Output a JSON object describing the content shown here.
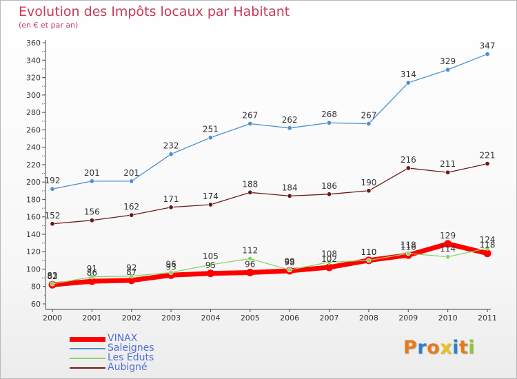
{
  "header": {
    "title": "Evolution des Impôts locaux par Habitant",
    "subtitle": "(en € et par an)"
  },
  "brand": {
    "letters": [
      "P",
      "r",
      "o",
      "x",
      "i",
      "t",
      "i"
    ],
    "colors": [
      "#e87a1e",
      "#2f7fd0",
      "#e87a1e",
      "#e8c21e",
      "#2f7fd0",
      "#e87a1e",
      "#8cc63f"
    ]
  },
  "chart_data": {
    "type": "line",
    "x": [
      "2000",
      "2001",
      "2002",
      "2003",
      "2004",
      "2005",
      "2006",
      "2007",
      "2008",
      "2009",
      "2010",
      "2011"
    ],
    "ylim": [
      60,
      360
    ],
    "yticks": [
      60,
      80,
      100,
      120,
      140,
      160,
      180,
      200,
      220,
      240,
      260,
      280,
      300,
      320,
      340,
      360
    ],
    "grid": false,
    "legend_position": "bottom-left",
    "series": [
      {
        "name": "VINAX",
        "color": "#ff0000",
        "values": [
          82,
          86,
          87,
          93,
          95,
          96,
          98,
          102,
          110,
          116,
          129,
          118
        ],
        "labels": [
          "82",
          "86",
          "87",
          "93",
          "95",
          "96",
          "98",
          "102",
          "110",
          "116",
          "129",
          "118"
        ]
      },
      {
        "name": "Saleignes",
        "color": "#4a90d0",
        "values": [
          192,
          201,
          201,
          232,
          251,
          267,
          262,
          268,
          267,
          314,
          329,
          347
        ],
        "labels": [
          "192",
          "201",
          "201",
          "232",
          "251",
          "267",
          "262",
          "268",
          "267",
          "314",
          "329",
          "347"
        ]
      },
      {
        "name": "Les Éduts",
        "color": "#8cd36a",
        "values": [
          83,
          91,
          92,
          96,
          105,
          112,
          99,
          108,
          110,
          118,
          114,
          124
        ],
        "labels": [
          "83",
          "91",
          "92",
          "96",
          "105",
          "112",
          "99",
          "108",
          "110",
          "118",
          "114",
          "124"
        ]
      },
      {
        "name": "Aubigné",
        "color": "#6b1a1a",
        "values": [
          152,
          156,
          162,
          171,
          174,
          188,
          184,
          186,
          190,
          216,
          211,
          221
        ],
        "labels": [
          "152",
          "156",
          "162",
          "171",
          "174",
          "188",
          "184",
          "186",
          "190",
          "216",
          "211",
          "221"
        ]
      }
    ]
  }
}
